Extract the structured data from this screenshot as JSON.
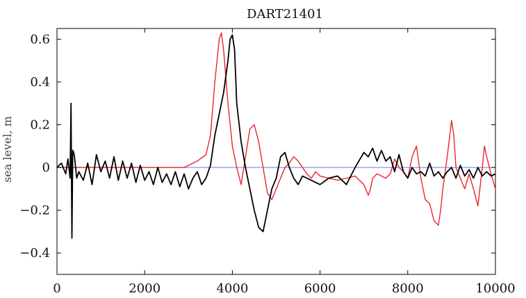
{
  "chart_data": {
    "type": "line",
    "title": "DART21401",
    "xlabel": "",
    "ylabel": "sea level, m",
    "xlim": [
      0,
      10000
    ],
    "ylim": [
      -0.5,
      0.65
    ],
    "x_ticks": [
      0,
      2000,
      4000,
      6000,
      8000,
      10000
    ],
    "x_tick_labels": [
      "0",
      "2000",
      "4000",
      "6000",
      "8000",
      "10000"
    ],
    "y_ticks": [
      -0.4,
      -0.2,
      0,
      0.2,
      0.4,
      0.6
    ],
    "y_tick_labels": [
      "−0.4",
      "−0.2",
      "0",
      "0.2",
      "0.4",
      "0.6"
    ],
    "grid": false,
    "reference_line": {
      "y": 0,
      "color": "#7777dd"
    },
    "series": [
      {
        "color": "#e8252b",
        "x": [
          0,
          1000,
          2000,
          2900,
          3000,
          3200,
          3400,
          3500,
          3600,
          3700,
          3750,
          3800,
          3900,
          4000,
          4100,
          4200,
          4300,
          4400,
          4500,
          4600,
          4700,
          4800,
          4900,
          5000,
          5100,
          5200,
          5300,
          5400,
          5500,
          5600,
          5700,
          5800,
          5900,
          6000,
          6200,
          6400,
          6600,
          6800,
          7000,
          7100,
          7150,
          7200,
          7300,
          7500,
          7600,
          7700,
          7800,
          7900,
          8000,
          8100,
          8200,
          8300,
          8400,
          8500,
          8600,
          8700,
          8750,
          8800,
          8900,
          9000,
          9050,
          9100,
          9200,
          9300,
          9400,
          9500,
          9600,
          9700,
          9750,
          9800,
          9900,
          10000
        ],
        "y": [
          0,
          0,
          0,
          0,
          0.01,
          0.03,
          0.06,
          0.15,
          0.4,
          0.6,
          0.63,
          0.55,
          0.3,
          0.1,
          0.0,
          -0.08,
          0.05,
          0.18,
          0.2,
          0.12,
          0.0,
          -0.12,
          -0.15,
          -0.1,
          -0.05,
          0.0,
          0.02,
          0.05,
          0.03,
          0.0,
          -0.03,
          -0.05,
          -0.02,
          -0.04,
          -0.05,
          -0.06,
          -0.05,
          -0.04,
          -0.08,
          -0.13,
          -0.1,
          -0.05,
          -0.03,
          -0.05,
          -0.03,
          0.04,
          0.0,
          -0.02,
          -0.05,
          0.05,
          0.1,
          -0.05,
          -0.15,
          -0.17,
          -0.25,
          -0.27,
          -0.2,
          -0.1,
          0.05,
          0.22,
          0.15,
          0.0,
          -0.05,
          -0.1,
          -0.03,
          -0.1,
          -0.18,
          0.0,
          0.1,
          0.05,
          -0.03,
          -0.1
        ]
      },
      {
        "color": "#000000",
        "x": [
          0,
          100,
          200,
          250,
          300,
          320,
          340,
          360,
          380,
          400,
          450,
          500,
          600,
          700,
          800,
          900,
          1000,
          1100,
          1200,
          1300,
          1400,
          1500,
          1600,
          1700,
          1800,
          1900,
          2000,
          2100,
          2200,
          2300,
          2400,
          2500,
          2600,
          2700,
          2800,
          2900,
          3000,
          3100,
          3200,
          3300,
          3400,
          3500,
          3600,
          3700,
          3800,
          3900,
          3950,
          4000,
          4050,
          4100,
          4200,
          4300,
          4400,
          4500,
          4600,
          4700,
          4800,
          4900,
          5000,
          5100,
          5200,
          5300,
          5400,
          5500,
          5600,
          5800,
          6000,
          6200,
          6400,
          6600,
          6800,
          7000,
          7100,
          7200,
          7300,
          7400,
          7500,
          7600,
          7700,
          7800,
          7900,
          8000,
          8100,
          8200,
          8300,
          8400,
          8500,
          8600,
          8700,
          8800,
          8900,
          9000,
          9100,
          9200,
          9300,
          9400,
          9500,
          9600,
          9700,
          9800,
          9900,
          10000
        ],
        "y": [
          0,
          0.02,
          -0.03,
          0.04,
          -0.05,
          0.3,
          -0.33,
          0.08,
          0.07,
          0.05,
          -0.05,
          -0.02,
          -0.06,
          0.02,
          -0.08,
          0.06,
          -0.02,
          0.03,
          -0.05,
          0.05,
          -0.06,
          0.03,
          -0.05,
          0.02,
          -0.07,
          0.01,
          -0.06,
          -0.02,
          -0.08,
          0.0,
          -0.07,
          -0.03,
          -0.08,
          -0.02,
          -0.09,
          -0.03,
          -0.1,
          -0.05,
          -0.02,
          -0.08,
          -0.05,
          0.01,
          0.15,
          0.25,
          0.35,
          0.5,
          0.6,
          0.62,
          0.55,
          0.3,
          0.12,
          0.0,
          -0.1,
          -0.2,
          -0.28,
          -0.3,
          -0.2,
          -0.1,
          -0.05,
          0.05,
          0.07,
          0.0,
          -0.05,
          -0.08,
          -0.04,
          -0.06,
          -0.08,
          -0.05,
          -0.04,
          -0.08,
          0.0,
          0.07,
          0.05,
          0.09,
          0.03,
          0.08,
          0.03,
          0.05,
          -0.02,
          0.06,
          -0.02,
          -0.05,
          0.0,
          -0.03,
          -0.02,
          -0.04,
          0.02,
          -0.04,
          -0.02,
          -0.05,
          -0.02,
          0.0,
          -0.05,
          0.01,
          -0.04,
          -0.01,
          -0.05,
          0.0,
          -0.04,
          -0.02,
          -0.04,
          -0.03
        ]
      }
    ]
  }
}
